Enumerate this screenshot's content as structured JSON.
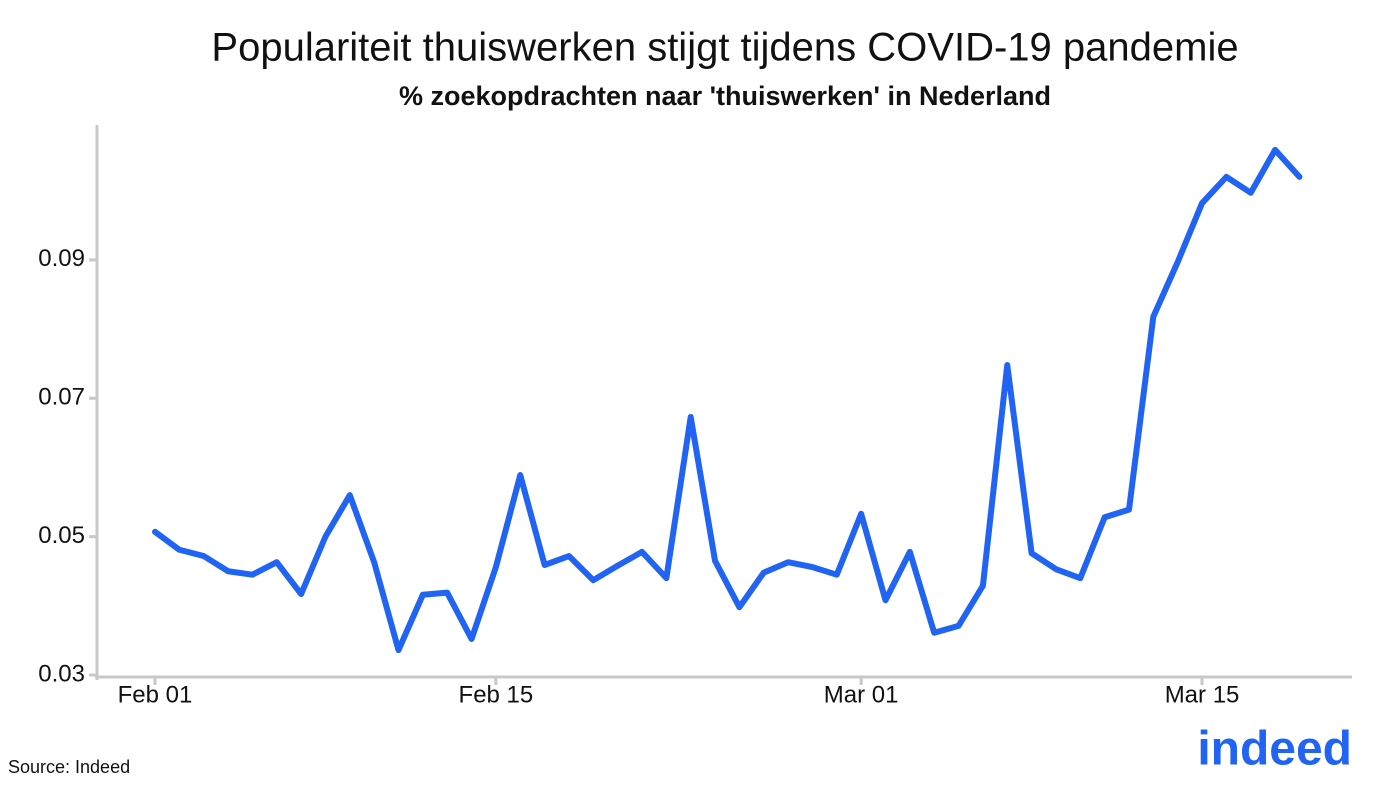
{
  "chart_data": {
    "type": "line",
    "title": "Populariteit thuiswerken stijgt tijdens COVID-19 pandemie",
    "subtitle": "% zoekopdrachten naar 'thuiswerken' in Nederland",
    "source": "Source: Indeed",
    "logo": "indeed",
    "x": [
      "Feb 01",
      "Feb 02",
      "Feb 03",
      "Feb 04",
      "Feb 05",
      "Feb 06",
      "Feb 07",
      "Feb 08",
      "Feb 09",
      "Feb 10",
      "Feb 11",
      "Feb 12",
      "Feb 13",
      "Feb 14",
      "Feb 15",
      "Feb 16",
      "Feb 17",
      "Feb 18",
      "Feb 19",
      "Feb 20",
      "Feb 21",
      "Feb 22",
      "Feb 23",
      "Feb 24",
      "Feb 25",
      "Feb 26",
      "Feb 27",
      "Feb 28",
      "Feb 29",
      "Mar 01",
      "Mar 02",
      "Mar 03",
      "Mar 04",
      "Mar 05",
      "Mar 06",
      "Mar 07",
      "Mar 08",
      "Mar 09",
      "Mar 10",
      "Mar 11",
      "Mar 12",
      "Mar 13",
      "Mar 14",
      "Mar 15",
      "Mar 16",
      "Mar 17",
      "Mar 18",
      "Mar 19"
    ],
    "series": [
      {
        "name": "thuiswerken",
        "color": "#2164f3",
        "values": [
          0.0507,
          0.0481,
          0.0472,
          0.045,
          0.0445,
          0.0463,
          0.0417,
          0.05,
          0.056,
          0.0463,
          0.0336,
          0.0416,
          0.0419,
          0.0352,
          0.0456,
          0.0589,
          0.0459,
          0.0472,
          0.0437,
          0.0458,
          0.0478,
          0.044,
          0.0673,
          0.0465,
          0.0398,
          0.0448,
          0.0463,
          0.0456,
          0.0445,
          0.0533,
          0.0408,
          0.0478,
          0.0361,
          0.0371,
          0.0429,
          0.0748,
          0.0476,
          0.0453,
          0.044,
          0.0528,
          0.0539,
          0.0818,
          0.0897,
          0.0982,
          0.102,
          0.0997,
          0.1059,
          0.102
        ]
      }
    ],
    "xticks": [
      "Feb 01",
      "Feb 15",
      "Mar 01",
      "Mar 15"
    ],
    "ylim": [
      0.03,
      0.1095
    ],
    "yticks": [
      0.03,
      0.05,
      0.07,
      0.09
    ],
    "grid": false
  }
}
